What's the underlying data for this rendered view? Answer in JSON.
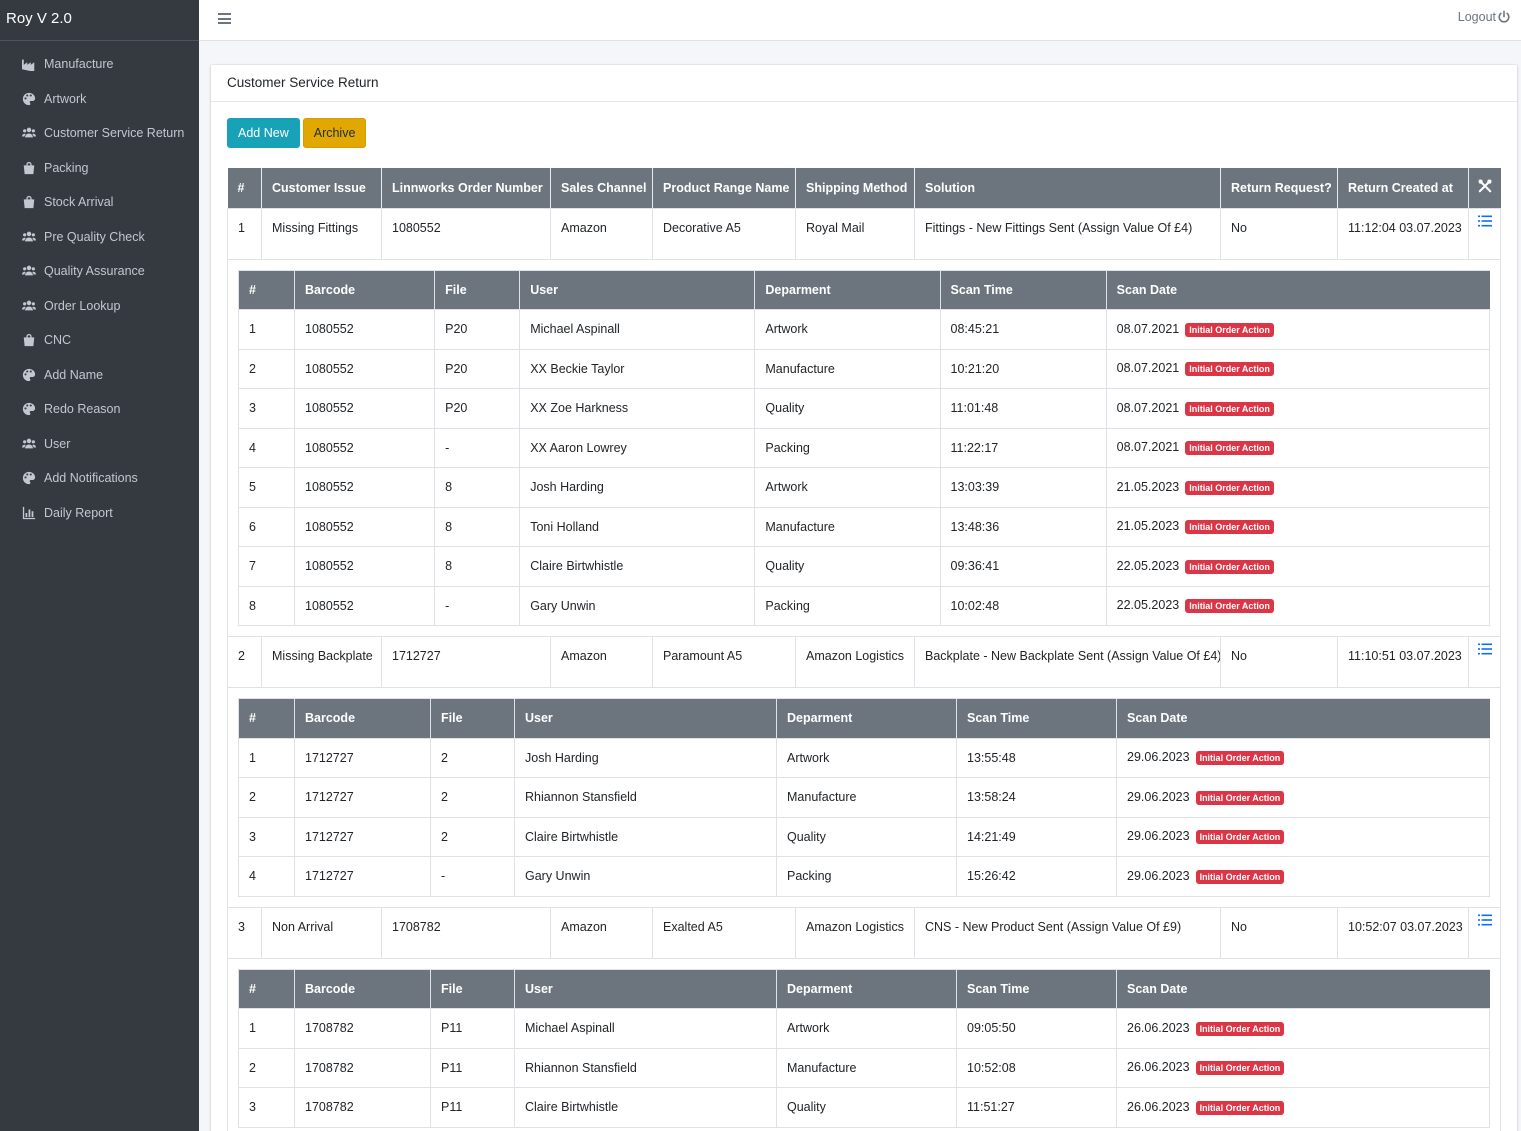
{
  "brand": "Roy V 2.0",
  "sidebar": {
    "items": [
      {
        "label": "Manufacture",
        "icon": "factory-icon"
      },
      {
        "label": "Artwork",
        "icon": "palette-icon"
      },
      {
        "label": "Customer Service Return",
        "icon": "users-icon"
      },
      {
        "label": "Packing",
        "icon": "shopping-bag-icon"
      },
      {
        "label": "Stock Arrival",
        "icon": "shopping-bag-icon"
      },
      {
        "label": "Pre Quality Check",
        "icon": "users-icon"
      },
      {
        "label": "Quality Assurance",
        "icon": "users-icon"
      },
      {
        "label": "Order Lookup",
        "icon": "users-icon"
      },
      {
        "label": "CNC",
        "icon": "shopping-bag-icon"
      },
      {
        "label": "Add Name",
        "icon": "palette-icon"
      },
      {
        "label": "Redo Reason",
        "icon": "palette-icon"
      },
      {
        "label": "User",
        "icon": "users-icon"
      },
      {
        "label": "Add Notifications",
        "icon": "palette-icon"
      },
      {
        "label": "Daily Report",
        "icon": "chart-bar-icon"
      }
    ]
  },
  "topbar": {
    "logout": "Logout"
  },
  "card": {
    "title": "Customer Service Return"
  },
  "buttons": {
    "add_new": "Add New",
    "archive": "Archive"
  },
  "table": {
    "headers": [
      "#",
      "Customer Issue",
      "Linnworks Order Number",
      "Sales Channel",
      "Product Range Name",
      "Shipping Method",
      "Solution",
      "Return Request?",
      "Return Created at"
    ],
    "sub_headers": [
      "#",
      "Barcode",
      "File",
      "User",
      "Deparment",
      "Scan Time",
      "Scan Date"
    ],
    "badge": "Initial Order Action",
    "returns": [
      {
        "num": "1",
        "issue": "Missing Fittings",
        "order": "1080552",
        "channel": "Amazon",
        "range": "Decorative A5",
        "shipping": "Royal Mail",
        "solution": "Fittings - New Fittings Sent (Assign Value Of £4)",
        "request": "No",
        "created": "11:12:04 03.07.2023",
        "scans": [
          [
            "1",
            "1080552",
            "P20",
            "Michael Aspinall",
            "Artwork",
            "08:45:21",
            "08.07.2021"
          ],
          [
            "2",
            "1080552",
            "P20",
            "XX Beckie Taylor",
            "Manufacture",
            "10:21:20",
            "08.07.2021"
          ],
          [
            "3",
            "1080552",
            "P20",
            "XX Zoe Harkness",
            "Quality",
            "11:01:48",
            "08.07.2021"
          ],
          [
            "4",
            "1080552",
            "-",
            "XX Aaron Lowrey",
            "Packing",
            "11:22:17",
            "08.07.2021"
          ],
          [
            "5",
            "1080552",
            "8",
            "Josh Harding",
            "Artwork",
            "13:03:39",
            "21.05.2023"
          ],
          [
            "6",
            "1080552",
            "8",
            "Toni Holland",
            "Manufacture",
            "13:48:36",
            "21.05.2023"
          ],
          [
            "7",
            "1080552",
            "8",
            "Claire Birtwhistle",
            "Quality",
            "09:36:41",
            "22.05.2023"
          ],
          [
            "8",
            "1080552",
            "-",
            "Gary Unwin",
            "Packing",
            "10:02:48",
            "22.05.2023"
          ]
        ]
      },
      {
        "num": "2",
        "issue": "Missing Backplate",
        "order": "1712727",
        "channel": "Amazon",
        "range": "Paramount A5",
        "shipping": "Amazon Logistics",
        "solution": "Backplate - New Backplate Sent (Assign Value Of £4)",
        "request": "No",
        "created": "11:10:51 03.07.2023",
        "scans": [
          [
            "1",
            "1712727",
            "2",
            "Josh Harding",
            "Artwork",
            "13:55:48",
            "29.06.2023"
          ],
          [
            "2",
            "1712727",
            "2",
            "Rhiannon Stansfield",
            "Manufacture",
            "13:58:24",
            "29.06.2023"
          ],
          [
            "3",
            "1712727",
            "2",
            "Claire Birtwhistle",
            "Quality",
            "14:21:49",
            "29.06.2023"
          ],
          [
            "4",
            "1712727",
            "-",
            "Gary Unwin",
            "Packing",
            "15:26:42",
            "29.06.2023"
          ]
        ]
      },
      {
        "num": "3",
        "issue": "Non Arrival",
        "order": "1708782",
        "channel": "Amazon",
        "range": "Exalted A5",
        "shipping": "Amazon Logistics",
        "solution": "CNS - New Product Sent (Assign Value Of £9)",
        "request": "No",
        "created": "10:52:07 03.07.2023",
        "scans": [
          [
            "1",
            "1708782",
            "P11",
            "Michael Aspinall",
            "Artwork",
            "09:05:50",
            "26.06.2023"
          ],
          [
            "2",
            "1708782",
            "P11",
            "Rhiannon Stansfield",
            "Manufacture",
            "10:52:08",
            "26.06.2023"
          ],
          [
            "3",
            "1708782",
            "P11",
            "Claire Birtwhistle",
            "Quality",
            "11:51:27",
            "26.06.2023"
          ]
        ]
      }
    ]
  }
}
